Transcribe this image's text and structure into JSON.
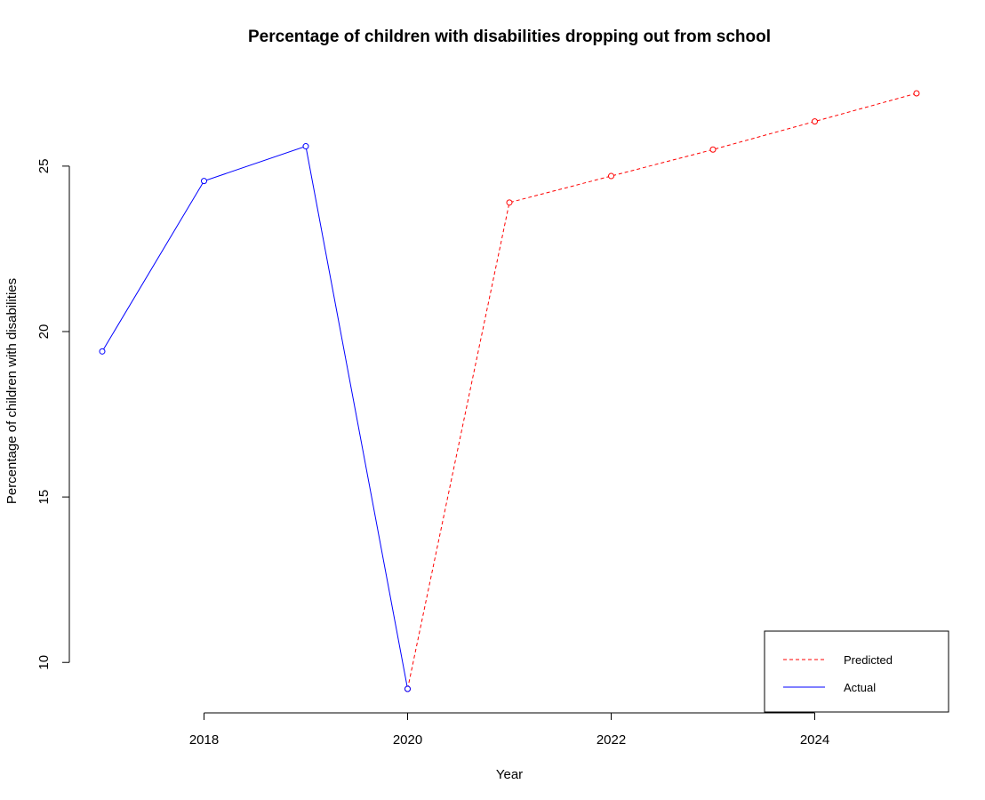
{
  "chart_data": {
    "type": "line",
    "title": "Percentage of children with disabilities dropping out from school",
    "xlabel": "Year",
    "ylabel": "Percentage of children with disabilities",
    "x_ticks": [
      2018,
      2020,
      2022,
      2024
    ],
    "y_ticks": [
      10,
      15,
      20,
      25
    ],
    "xlim": [
      2017,
      2025
    ],
    "ylim": [
      9.2,
      27.2
    ],
    "grid": false,
    "legend_position": "bottom-right",
    "series": [
      {
        "name": "Predicted",
        "color": "#ff0000",
        "line_style": "dashed",
        "marker": "open-circle",
        "x": [
          2020,
          2021,
          2022,
          2023,
          2024,
          2025
        ],
        "y": [
          9.2,
          23.9,
          24.7,
          25.5,
          26.35,
          27.2
        ]
      },
      {
        "name": "Actual",
        "color": "#0000ff",
        "line_style": "solid",
        "marker": "open-circle",
        "x": [
          2017,
          2018,
          2019,
          2020
        ],
        "y": [
          19.4,
          24.55,
          25.6,
          9.2
        ]
      }
    ],
    "legend_order": [
      "Predicted",
      "Actual"
    ]
  }
}
